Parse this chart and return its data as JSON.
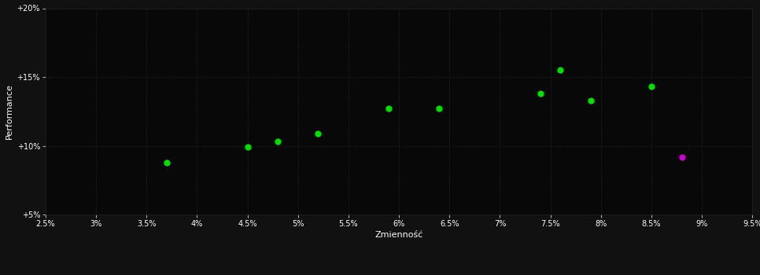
{
  "xlabel": "Zmienność",
  "ylabel": "Performance",
  "background_color": "#111111",
  "plot_bg_color": "#080808",
  "grid_color": "#2a2a2a",
  "text_color": "#ffffff",
  "xlim": [
    0.025,
    0.095
  ],
  "ylim": [
    0.05,
    0.2
  ],
  "xticks": [
    0.025,
    0.03,
    0.035,
    0.04,
    0.045,
    0.05,
    0.055,
    0.06,
    0.065,
    0.07,
    0.075,
    0.08,
    0.085,
    0.09,
    0.095
  ],
  "yticks": [
    0.05,
    0.1,
    0.15,
    0.2
  ],
  "green_points": [
    [
      0.037,
      0.088
    ],
    [
      0.045,
      0.099
    ],
    [
      0.048,
      0.103
    ],
    [
      0.052,
      0.109
    ],
    [
      0.059,
      0.127
    ],
    [
      0.064,
      0.127
    ],
    [
      0.074,
      0.138
    ],
    [
      0.076,
      0.155
    ],
    [
      0.079,
      0.133
    ],
    [
      0.085,
      0.143
    ]
  ],
  "magenta_points": [
    [
      0.088,
      0.092
    ]
  ],
  "green_color": "#00dd00",
  "magenta_color": "#cc00cc",
  "marker_size": 5,
  "font_size_ticks": 7,
  "font_size_label": 8
}
